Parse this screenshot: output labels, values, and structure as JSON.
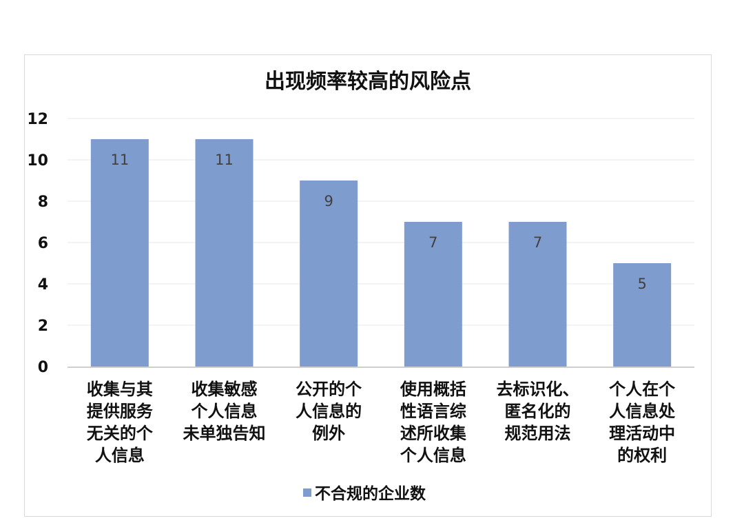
{
  "chart_data": {
    "type": "bar",
    "title": "出现频率较高的风险点",
    "categories": [
      [
        "收集与其",
        "提供服务",
        "无关的个",
        "人信息"
      ],
      [
        "收集敏感",
        "个人信息",
        "未单独告知"
      ],
      [
        "公开的个",
        "人信息的",
        "例外"
      ],
      [
        "使用概括",
        "性语言综",
        "述所收集",
        "个人信息"
      ],
      [
        "去标识化、",
        "匿名化的",
        "规范用法"
      ],
      [
        "个人在个",
        "人信息处",
        "理活动中",
        "的权利"
      ]
    ],
    "series": [
      {
        "name": "不合规的企业数",
        "values": [
          11,
          11,
          9,
          7,
          7,
          5
        ],
        "color": "#7f9ccf"
      }
    ],
    "ylim": [
      0,
      12
    ],
    "yticks": [
      0,
      2,
      4,
      6,
      8,
      10,
      12
    ],
    "grid": true,
    "legend_position": "bottom",
    "data_labels": true
  }
}
